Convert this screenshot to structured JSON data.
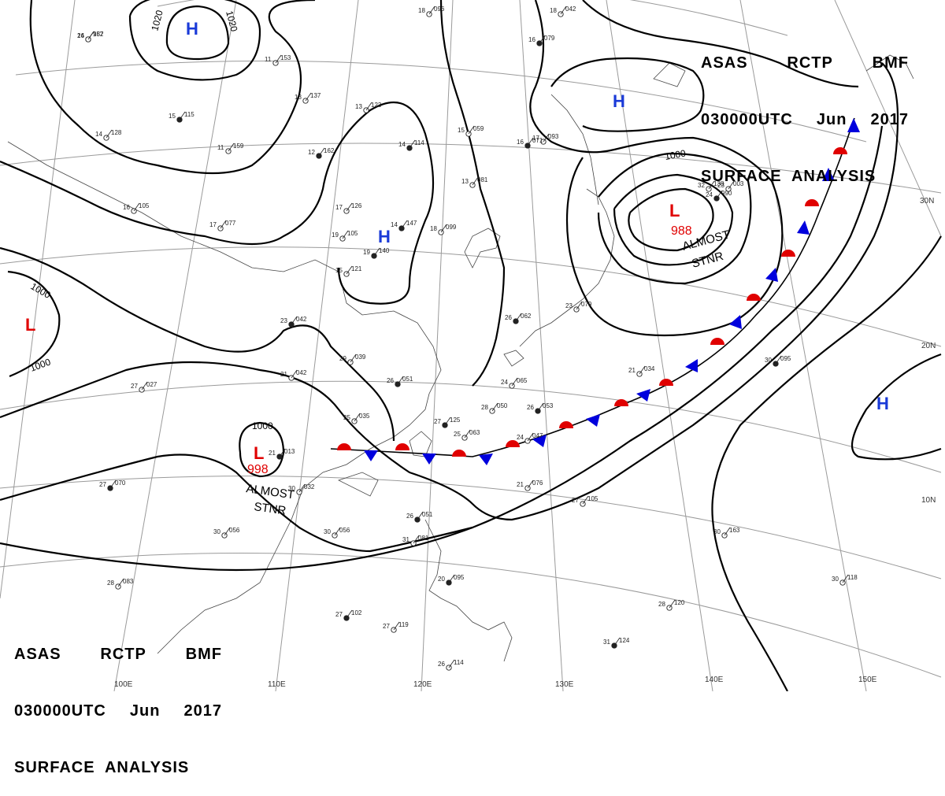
{
  "header": {
    "line1": [
      "ASAS",
      "RCTP",
      "BMF"
    ],
    "line2": [
      "030000UTC",
      "Jun",
      "2017"
    ],
    "line3": "SURFACE  ANALYSIS"
  },
  "lat_labels": [
    "30N",
    "20N",
    "10N"
  ],
  "lon_labels": [
    "100E",
    "110E",
    "120E",
    "130E",
    "140E",
    "150E"
  ],
  "isobar_labels": [
    "1020",
    "1020",
    "1000",
    "1000",
    "1000",
    "1000"
  ],
  "pressure_systems": [
    {
      "type": "H",
      "name": "high-north"
    },
    {
      "type": "H",
      "name": "high-east-asia"
    },
    {
      "type": "H",
      "name": "high-okhotsk"
    },
    {
      "type": "H",
      "name": "high-pacific"
    },
    {
      "type": "L",
      "name": "low-japan",
      "value": "988"
    },
    {
      "type": "L",
      "name": "low-south-china",
      "value": "998"
    },
    {
      "type": "L",
      "name": "low-west"
    }
  ],
  "annotations": [
    {
      "text1": "ALMOST",
      "text2": "STNR"
    },
    {
      "text1": "ALMOST",
      "text2": "STNR"
    }
  ],
  "stations": [
    [
      "14",
      "152"
    ],
    [
      "11",
      "153"
    ],
    [
      "13",
      "137"
    ],
    [
      "15",
      "115"
    ],
    [
      "14",
      "128"
    ],
    [
      "11",
      "159"
    ],
    [
      "12",
      "162"
    ],
    [
      "16",
      "105"
    ],
    [
      "18",
      "096"
    ],
    [
      "16",
      "079"
    ],
    [
      "18",
      "042"
    ],
    [
      "17",
      "093"
    ],
    [
      "16",
      "071"
    ],
    [
      "15",
      "059"
    ],
    [
      "13",
      "081"
    ],
    [
      "14",
      "114"
    ],
    [
      "13",
      "123"
    ],
    [
      "17",
      "126"
    ],
    [
      "14",
      "147"
    ],
    [
      "18",
      "099"
    ],
    [
      "19",
      "105"
    ],
    [
      "19",
      "140"
    ],
    [
      "15",
      "121"
    ],
    [
      "17",
      "077"
    ],
    [
      "23",
      "042"
    ],
    [
      "29",
      "039"
    ],
    [
      "21",
      "042"
    ],
    [
      "26",
      "051"
    ],
    [
      "25",
      "035"
    ],
    [
      "27",
      "027"
    ],
    [
      "21",
      "013"
    ],
    [
      "30",
      "032"
    ],
    [
      "30",
      "056"
    ],
    [
      "27",
      "070"
    ],
    [
      "30",
      "056"
    ],
    [
      "28",
      "083"
    ],
    [
      "27",
      "102"
    ],
    [
      "27",
      "119"
    ],
    [
      "26",
      "114"
    ],
    [
      "27",
      "125"
    ],
    [
      "25",
      "063"
    ],
    [
      "28",
      "050"
    ],
    [
      "26",
      "053"
    ],
    [
      "24",
      "047"
    ],
    [
      "24",
      "065"
    ],
    [
      "26",
      "062"
    ],
    [
      "23",
      "079"
    ],
    [
      "21",
      "034"
    ],
    [
      "26",
      "051"
    ],
    [
      "31",
      "081"
    ],
    [
      "21",
      "076"
    ],
    [
      "20",
      "095"
    ],
    [
      "27",
      "105"
    ],
    [
      "30",
      "163"
    ],
    [
      "31",
      "124"
    ],
    [
      "30",
      "118"
    ],
    [
      "28",
      "120"
    ],
    [
      "30",
      "095"
    ],
    [
      "32",
      "138"
    ],
    [
      "23",
      "003"
    ],
    [
      "24",
      "990"
    ],
    [
      "26",
      "987"
    ]
  ]
}
